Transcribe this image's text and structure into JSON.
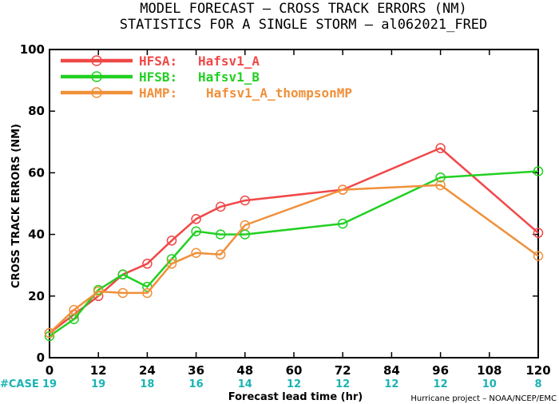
{
  "chart_data": {
    "type": "line",
    "title": "MODEL FORECAST – CROSS TRACK ERRORS (NM)",
    "subtitle": "STATISTICS FOR A SINGLE STORM – al062021_FRED",
    "xlabel": "Forecast lead time (hr)",
    "ylabel": "CROSS TRACK ERRORS (NM)",
    "xlim": [
      0,
      120
    ],
    "ylim": [
      0,
      100
    ],
    "xticks": [
      "0",
      "12",
      "24",
      "36",
      "48",
      "60",
      "72",
      "84",
      "96",
      "108",
      "120"
    ],
    "yticks": [
      "0",
      "20",
      "40",
      "60",
      "80",
      "100"
    ],
    "grid": false,
    "legend_position": "top-left",
    "case_label": "#CASE",
    "case_counts": [
      "19",
      "19",
      "18",
      "16",
      "14",
      "12",
      "12",
      "12",
      "12",
      "10",
      "8"
    ],
    "credit": "Hurricane project – NOAA/NCEP/EMC",
    "series": [
      {
        "name": "HFSA:",
        "desc": "Hafsv1_A",
        "color": "#f04848",
        "x": [
          0,
          6,
          12,
          18,
          24,
          30,
          36,
          42,
          48,
          72,
          96,
          120
        ],
        "y": [
          8,
          14,
          20,
          27,
          30.5,
          38,
          45,
          49,
          51,
          54.5,
          68,
          40.5
        ]
      },
      {
        "name": "HFSB:",
        "desc": "Hafsv1_B",
        "color": "#22d022",
        "x": [
          0,
          6,
          12,
          18,
          24,
          30,
          36,
          42,
          48,
          72,
          96,
          120
        ],
        "y": [
          7,
          12.5,
          22,
          27,
          23,
          32,
          41,
          40,
          40,
          43.5,
          58.5,
          60.5
        ]
      },
      {
        "name": "HAMP:",
        "desc": "Hafsv1_A_thompsonMP",
        "color": "#f0903a",
        "x": [
          0,
          6,
          12,
          18,
          24,
          30,
          36,
          42,
          48,
          72,
          96,
          120
        ],
        "y": [
          8,
          15.5,
          21.5,
          21,
          21,
          30.5,
          34,
          33.5,
          43,
          54.5,
          56,
          33
        ]
      }
    ]
  }
}
